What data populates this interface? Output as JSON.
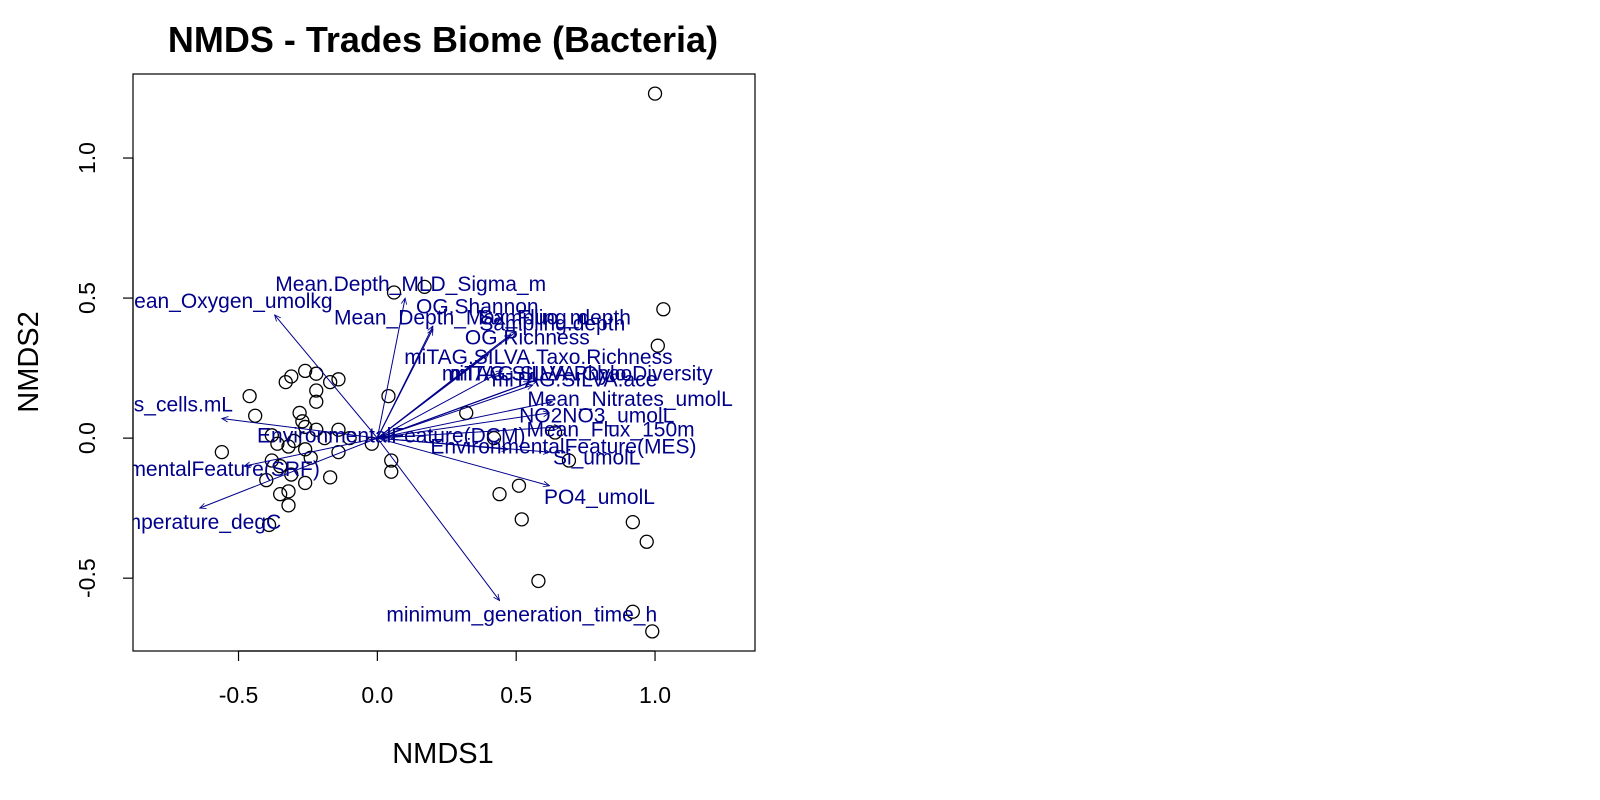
{
  "chart_data": {
    "type": "scatter",
    "title": "NMDS - Trades Biome (Bacteria)",
    "xlabel": "NMDS1",
    "ylabel": "NMDS2",
    "xlim": [
      -0.88,
      1.36
    ],
    "ylim": [
      -0.76,
      1.3
    ],
    "x_ticks": [
      {
        "value": -0.5,
        "label": "-0.5"
      },
      {
        "value": 0.0,
        "label": "0.0"
      },
      {
        "value": 0.5,
        "label": "0.5"
      },
      {
        "value": 1.0,
        "label": "1.0"
      }
    ],
    "y_ticks": [
      {
        "value": -0.5,
        "label": "-0.5"
      },
      {
        "value": 0.0,
        "label": "0.0"
      },
      {
        "value": 0.5,
        "label": "0.5"
      },
      {
        "value": 1.0,
        "label": "1.0"
      }
    ],
    "points": [
      {
        "x": 1.0,
        "y": 1.23
      },
      {
        "x": 1.03,
        "y": 0.46
      },
      {
        "x": 1.01,
        "y": 0.33
      },
      {
        "x": 0.17,
        "y": 0.54
      },
      {
        "x": 0.06,
        "y": 0.52
      },
      {
        "x": 0.04,
        "y": 0.15
      },
      {
        "x": 0.32,
        "y": 0.09
      },
      {
        "x": 0.42,
        "y": 0.0
      },
      {
        "x": 0.64,
        "y": 0.02
      },
      {
        "x": 0.69,
        "y": -0.08
      },
      {
        "x": 0.44,
        "y": -0.2
      },
      {
        "x": 0.51,
        "y": -0.17
      },
      {
        "x": 0.52,
        "y": -0.29
      },
      {
        "x": 0.58,
        "y": -0.51
      },
      {
        "x": 0.92,
        "y": -0.3
      },
      {
        "x": 0.97,
        "y": -0.37
      },
      {
        "x": 0.92,
        "y": -0.62
      },
      {
        "x": 0.99,
        "y": -0.69
      },
      {
        "x": -0.56,
        "y": -0.05
      },
      {
        "x": -0.46,
        "y": 0.15
      },
      {
        "x": -0.44,
        "y": 0.08
      },
      {
        "x": -0.33,
        "y": 0.2
      },
      {
        "x": -0.31,
        "y": 0.22
      },
      {
        "x": -0.26,
        "y": 0.24
      },
      {
        "x": -0.22,
        "y": 0.23
      },
      {
        "x": -0.22,
        "y": 0.17
      },
      {
        "x": -0.22,
        "y": 0.13
      },
      {
        "x": -0.17,
        "y": 0.2
      },
      {
        "x": -0.14,
        "y": 0.21
      },
      {
        "x": -0.28,
        "y": 0.09
      },
      {
        "x": -0.27,
        "y": 0.06
      },
      {
        "x": -0.26,
        "y": 0.04
      },
      {
        "x": -0.22,
        "y": 0.03
      },
      {
        "x": -0.19,
        "y": 0.0
      },
      {
        "x": -0.14,
        "y": 0.03
      },
      {
        "x": -0.1,
        "y": 0.0
      },
      {
        "x": -0.38,
        "y": 0.01
      },
      {
        "x": -0.36,
        "y": -0.02
      },
      {
        "x": -0.32,
        "y": -0.03
      },
      {
        "x": -0.3,
        "y": -0.01
      },
      {
        "x": -0.26,
        "y": -0.04
      },
      {
        "x": -0.24,
        "y": -0.07
      },
      {
        "x": -0.38,
        "y": -0.08
      },
      {
        "x": -0.35,
        "y": -0.1
      },
      {
        "x": -0.4,
        "y": -0.15
      },
      {
        "x": -0.31,
        "y": -0.13
      },
      {
        "x": -0.26,
        "y": -0.16
      },
      {
        "x": -0.32,
        "y": -0.19
      },
      {
        "x": -0.35,
        "y": -0.2
      },
      {
        "x": -0.32,
        "y": -0.24
      },
      {
        "x": -0.39,
        "y": -0.31
      },
      {
        "x": -0.17,
        "y": -0.14
      },
      {
        "x": -0.14,
        "y": -0.05
      },
      {
        "x": 0.05,
        "y": -0.12
      },
      {
        "x": 0.05,
        "y": -0.08
      },
      {
        "x": -0.02,
        "y": -0.02
      }
    ],
    "vectors": [
      {
        "label": "Mean.Depth_MLD_Sigma_m",
        "x": 0.1,
        "y": 0.5,
        "lx": 0.12,
        "ly": 0.55
      },
      {
        "label": "Mean_Oxygen_umolkg",
        "x": -0.37,
        "y": 0.44,
        "lx": -0.55,
        "ly": 0.49
      },
      {
        "label": "OG.Shannon",
        "x": 0.2,
        "y": 0.4,
        "lx": 0.36,
        "ly": 0.47
      },
      {
        "label": "Mean_Depth_Max_Fluo_m",
        "x": 0.2,
        "y": 0.39,
        "lx": 0.3,
        "ly": 0.43
      },
      {
        "label": "Sampling_depth",
        "x": 0.5,
        "y": 0.38,
        "lx": 0.64,
        "ly": 0.43
      },
      {
        "label": "Sampling.depth",
        "x": 0.48,
        "y": 0.37,
        "lx": 0.63,
        "ly": 0.41
      },
      {
        "label": "OG.Richness",
        "x": 0.4,
        "y": 0.3,
        "lx": 0.54,
        "ly": 0.36
      },
      {
        "label": "miTAG.SILVA.Taxo.Richness",
        "x": 0.45,
        "y": 0.24,
        "lx": 0.58,
        "ly": 0.29
      },
      {
        "label": "miTAG.SILVA.Chao",
        "x": 0.55,
        "y": 0.2,
        "lx": 0.59,
        "ly": 0.23
      },
      {
        "label": "miTAG.SILVA.Phylo.Diversity",
        "x": 0.58,
        "y": 0.21,
        "lx": 0.72,
        "ly": 0.23
      },
      {
        "label": "miTAG.SILVA.ace",
        "x": 0.56,
        "y": 0.19,
        "lx": 0.71,
        "ly": 0.21
      },
      {
        "label": "Mean_Nitrates_umolL",
        "x": 0.63,
        "y": 0.13,
        "lx": 0.91,
        "ly": 0.14
      },
      {
        "label": "NO2NO3_umolL",
        "x": 0.62,
        "y": 0.09,
        "lx": 0.79,
        "ly": 0.08
      },
      {
        "label": "Mean_Flux_150m",
        "x": 0.66,
        "y": 0.04,
        "lx": 0.84,
        "ly": 0.03
      },
      {
        "label": "ths_cells.mL",
        "x": -0.56,
        "y": 0.07,
        "lx": -0.73,
        "ly": 0.12
      },
      {
        "label": "EnvironmentalFeature(DCM)",
        "x": 0.07,
        "y": 0.01,
        "lx": 0.05,
        "ly": 0.01
      },
      {
        "label": "EnvironmentalFeature(MES)",
        "x": 0.47,
        "y": -0.04,
        "lx": 0.67,
        "ly": -0.03
      },
      {
        "label": "Si_umolL",
        "x": 0.62,
        "y": -0.05,
        "lx": 0.79,
        "ly": -0.07
      },
      {
        "label": "EnvironmentalFeature(SRF)",
        "x": -0.48,
        "y": -0.1,
        "lx": -0.68,
        "ly": -0.11
      },
      {
        "label": "PO4_umolL",
        "x": 0.62,
        "y": -0.17,
        "lx": 0.8,
        "ly": -0.21
      },
      {
        "label": "mperature_degC",
        "x": -0.64,
        "y": -0.25,
        "lx": -0.63,
        "ly": -0.3
      },
      {
        "label": "minimum_generation_time_h",
        "x": 0.44,
        "y": -0.58,
        "lx": 0.52,
        "ly": -0.63
      }
    ]
  }
}
